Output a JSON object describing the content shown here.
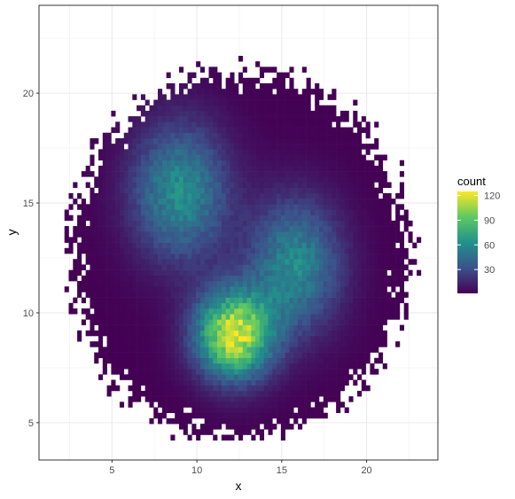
{
  "chart_data": {
    "type": "heatmap",
    "subtype": "2d-bin-count",
    "title": "",
    "xlabel": "x",
    "ylabel": "y",
    "xlim": [
      0.7,
      24.2
    ],
    "ylim": [
      3.3,
      24.0
    ],
    "x_ticks": [
      5,
      10,
      15,
      20
    ],
    "y_ticks": [
      5,
      10,
      15,
      20
    ],
    "x_tick_labels": [
      "5",
      "10",
      "15",
      "20"
    ],
    "y_tick_labels": [
      "5",
      "10",
      "15",
      "20"
    ],
    "grid": true,
    "bin_width": 0.25,
    "count_range": [
      1,
      125
    ],
    "support": {
      "type": "approx-ellipse",
      "x_range": [
        2.2,
        23.1
      ],
      "y_range": [
        4.2,
        23.2
      ]
    },
    "clusters": [
      {
        "center": [
          9.0,
          15.5
        ],
        "peak_count": 75
      },
      {
        "center": [
          15.8,
          12.2
        ],
        "peak_count": 70
      },
      {
        "center": [
          12.2,
          9.0
        ],
        "peak_count": 125
      }
    ],
    "legend": {
      "title": "count",
      "position": "right",
      "ticks": [
        30,
        60,
        90,
        120
      ],
      "tick_labels": [
        "30",
        "60",
        "90",
        "120"
      ],
      "colormap": "viridis",
      "colors": [
        "#440154",
        "#3b528b",
        "#21918c",
        "#5ec962",
        "#fde725"
      ]
    }
  }
}
